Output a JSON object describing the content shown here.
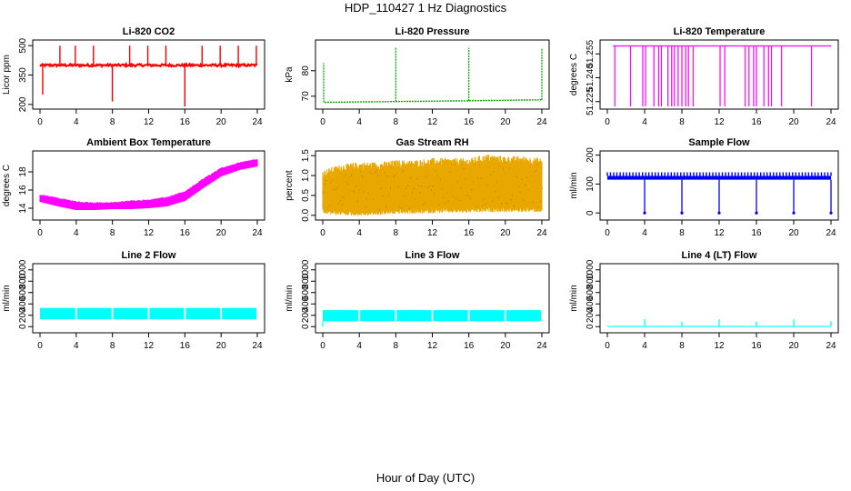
{
  "title": "HDP_110427  1 Hz Diagnostics",
  "xlabel": "Hour of Day (UTC)",
  "chart_data": [
    {
      "type": "line",
      "id": "co2",
      "title": "Li-820 CO2",
      "ylabel": "Licor ppm",
      "color": "#ff0000",
      "xlim": [
        0,
        24
      ],
      "xticks": [
        0,
        4,
        8,
        12,
        16,
        20,
        24
      ],
      "ylim": [
        190,
        515
      ],
      "yticks": [
        200,
        350,
        500
      ],
      "baseline": 400,
      "noise": 6,
      "spikes": [
        {
          "x": 0.3,
          "y": 250
        },
        {
          "x": 2.2,
          "y": 500
        },
        {
          "x": 3.9,
          "y": 500
        },
        {
          "x": 5.9,
          "y": 500
        },
        {
          "x": 8.0,
          "y": 215
        },
        {
          "x": 9.9,
          "y": 500
        },
        {
          "x": 11.9,
          "y": 500
        },
        {
          "x": 13.9,
          "y": 500
        },
        {
          "x": 16.0,
          "y": 190
        },
        {
          "x": 17.9,
          "y": 500
        },
        {
          "x": 19.9,
          "y": 500
        },
        {
          "x": 21.9,
          "y": 500
        },
        {
          "x": 23.9,
          "y": 500
        }
      ]
    },
    {
      "type": "line",
      "id": "pressure",
      "title": "Li-820 Pressure",
      "ylabel": "kPa",
      "color": "#00b000",
      "xlim": [
        0,
        24
      ],
      "xticks": [
        0,
        4,
        8,
        12,
        16,
        20,
        24
      ],
      "ylim": [
        66,
        91
      ],
      "yticks": [
        70,
        80
      ],
      "points": [
        {
          "x": 0.2,
          "y": 67.6
        },
        {
          "x": 8,
          "y": 67.9
        },
        {
          "x": 16,
          "y": 68.2
        },
        {
          "x": 24,
          "y": 68.6
        }
      ],
      "spikes": [
        {
          "x": 0.1,
          "y": 83
        },
        {
          "x": 8.0,
          "y": 89
        },
        {
          "x": 16.0,
          "y": 89
        },
        {
          "x": 24.0,
          "y": 89
        }
      ]
    },
    {
      "type": "line",
      "id": "licor_temp",
      "title": "Li-820 Temperature",
      "ylabel": "degrees C",
      "color": "#ff00ff",
      "xlim": [
        0,
        24
      ],
      "xticks": [
        0,
        4,
        8,
        12,
        16,
        20,
        24
      ],
      "ylim": [
        51.222,
        51.262
      ],
      "yticks": [
        51.225,
        51.24,
        51.255
      ],
      "ytick_labels": [
        "51.225",
        "51.240",
        "51.255"
      ],
      "high": 51.26,
      "low": 51.222,
      "drops": [
        0.8,
        2.5,
        3.8,
        4.1,
        5.0,
        5.5,
        5.8,
        6.5,
        6.9,
        7.2,
        7.6,
        8.0,
        8.4,
        8.7,
        9.2,
        12.1,
        12.6,
        14.8,
        15.2,
        15.7,
        16.0,
        16.8,
        17.3,
        17.6,
        18.7,
        21.9
      ]
    },
    {
      "type": "area",
      "id": "box_temp",
      "title": "Ambient Box Temperature",
      "ylabel": "degrees C",
      "color": "#ff00ff",
      "xlim": [
        0,
        24
      ],
      "xticks": [
        0,
        4,
        8,
        12,
        16,
        20,
        24
      ],
      "ylim": [
        13,
        20
      ],
      "yticks": [
        14,
        16,
        18
      ],
      "upper": [
        {
          "x": 0,
          "y": 15.5
        },
        {
          "x": 2,
          "y": 15.1
        },
        {
          "x": 4,
          "y": 14.7
        },
        {
          "x": 6,
          "y": 14.6
        },
        {
          "x": 8,
          "y": 14.6
        },
        {
          "x": 10,
          "y": 14.8
        },
        {
          "x": 12,
          "y": 14.9
        },
        {
          "x": 14,
          "y": 15.2
        },
        {
          "x": 16,
          "y": 15.8
        },
        {
          "x": 18,
          "y": 17.2
        },
        {
          "x": 20,
          "y": 18.4
        },
        {
          "x": 22,
          "y": 19.0
        },
        {
          "x": 24,
          "y": 19.4
        }
      ],
      "lower": [
        {
          "x": 0,
          "y": 14.7
        },
        {
          "x": 2,
          "y": 14.2
        },
        {
          "x": 4,
          "y": 13.8
        },
        {
          "x": 6,
          "y": 13.8
        },
        {
          "x": 8,
          "y": 13.9
        },
        {
          "x": 10,
          "y": 13.9
        },
        {
          "x": 12,
          "y": 14.0
        },
        {
          "x": 14,
          "y": 14.2
        },
        {
          "x": 16,
          "y": 14.8
        },
        {
          "x": 18,
          "y": 16.2
        },
        {
          "x": 20,
          "y": 17.5
        },
        {
          "x": 22,
          "y": 18.2
        },
        {
          "x": 24,
          "y": 18.6
        }
      ]
    },
    {
      "type": "area",
      "id": "rh",
      "title": "Gas Stream RH",
      "ylabel": "percent",
      "color": "#e8a800",
      "xlim": [
        0,
        24
      ],
      "xticks": [
        0,
        4,
        8,
        12,
        16,
        20,
        24
      ],
      "ylim": [
        -0.05,
        1.55
      ],
      "yticks": [
        0.0,
        0.5,
        1.0,
        1.5
      ],
      "ytick_labels": [
        "0.0",
        "0.5",
        "1.0",
        "1.5"
      ],
      "upper": [
        {
          "x": 0,
          "y": 1.0
        },
        {
          "x": 2,
          "y": 1.15
        },
        {
          "x": 4,
          "y": 1.2
        },
        {
          "x": 6,
          "y": 1.2
        },
        {
          "x": 8,
          "y": 1.25
        },
        {
          "x": 10,
          "y": 1.25
        },
        {
          "x": 12,
          "y": 1.3
        },
        {
          "x": 14,
          "y": 1.3
        },
        {
          "x": 16,
          "y": 1.3
        },
        {
          "x": 18,
          "y": 1.4
        },
        {
          "x": 20,
          "y": 1.35
        },
        {
          "x": 22,
          "y": 1.35
        },
        {
          "x": 24,
          "y": 1.3
        }
      ],
      "lower": [
        {
          "x": 0,
          "y": 0.15
        },
        {
          "x": 2,
          "y": 0.12
        },
        {
          "x": 4,
          "y": 0.1
        },
        {
          "x": 6,
          "y": 0.12
        },
        {
          "x": 8,
          "y": 0.15
        },
        {
          "x": 10,
          "y": 0.15
        },
        {
          "x": 12,
          "y": 0.17
        },
        {
          "x": 14,
          "y": 0.18
        },
        {
          "x": 16,
          "y": 0.18
        },
        {
          "x": 18,
          "y": 0.2
        },
        {
          "x": 20,
          "y": 0.2
        },
        {
          "x": 22,
          "y": 0.2
        },
        {
          "x": 24,
          "y": 0.2
        }
      ]
    },
    {
      "type": "line",
      "id": "sample_flow",
      "title": "Sample Flow",
      "ylabel": "ml/min",
      "color": "#0000ff",
      "xlim": [
        0,
        24
      ],
      "xticks": [
        0,
        4,
        8,
        12,
        16,
        20,
        24
      ],
      "ylim": [
        -15,
        205
      ],
      "yticks": [
        0,
        100,
        200
      ],
      "baseline": 115,
      "band_top": 128,
      "drops": [
        {
          "x": 4.0,
          "y": 0
        },
        {
          "x": 8.0,
          "y": 0
        },
        {
          "x": 12.0,
          "y": 0
        },
        {
          "x": 16.0,
          "y": 0
        },
        {
          "x": 20.0,
          "y": 0
        },
        {
          "x": 24.0,
          "y": 0
        }
      ]
    },
    {
      "type": "area",
      "id": "line2",
      "title": "Line 2 Flow",
      "ylabel": "ml/min",
      "color": "#00ffff",
      "xlim": [
        0,
        24
      ],
      "xticks": [
        0,
        4,
        8,
        12,
        16,
        20,
        24
      ],
      "ylim": [
        -60,
        1060
      ],
      "yticks": [
        0,
        200,
        400,
        600,
        800,
        1000
      ],
      "upper_value": 330,
      "lower_value": 130,
      "gaps": [
        4.0,
        8.0,
        12.0,
        16.0,
        20.0,
        24.0
      ]
    },
    {
      "type": "area",
      "id": "line3",
      "title": "Line 3 Flow",
      "ylabel": "ml/min",
      "color": "#00ffff",
      "xlim": [
        0,
        24
      ],
      "xticks": [
        0,
        4,
        8,
        12,
        16,
        20,
        24
      ],
      "ylim": [
        -60,
        1060
      ],
      "yticks": [
        0,
        200,
        400,
        600,
        800,
        1000
      ],
      "upper_value": 290,
      "lower_value": 95,
      "gaps": [
        4.0,
        8.0,
        12.0,
        16.0,
        20.0,
        24.0
      ]
    },
    {
      "type": "line",
      "id": "line4",
      "title": "Line 4 (LT) Flow",
      "ylabel": "ml/min",
      "color": "#00ffff",
      "xlim": [
        0,
        24
      ],
      "xticks": [
        0,
        4,
        8,
        12,
        16,
        20,
        24
      ],
      "ylim": [
        -60,
        1060
      ],
      "yticks": [
        0,
        200,
        400,
        600,
        800,
        1000
      ],
      "baseline": 5,
      "spikes": [
        {
          "x": 4.0,
          "y": 130
        },
        {
          "x": 8.0,
          "y": 90
        },
        {
          "x": 12.0,
          "y": 130
        },
        {
          "x": 16.0,
          "y": 90
        },
        {
          "x": 20.0,
          "y": 130
        },
        {
          "x": 24.0,
          "y": 90
        }
      ]
    }
  ]
}
